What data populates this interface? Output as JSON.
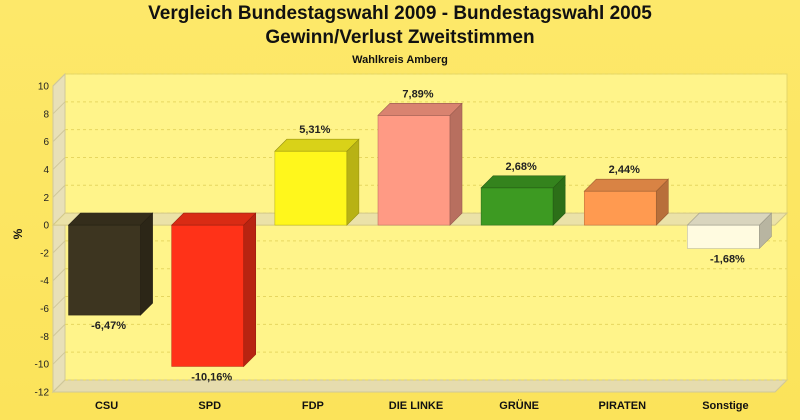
{
  "chart_data": {
    "type": "bar",
    "title": "Vergleich Bundestagswahl 2009 - Bundestagswahl 2005",
    "subtitle": "Gewinn/Verlust Zweitstimmen",
    "caption": "Wahlkreis Amberg",
    "ylabel": "%",
    "xlabel": "",
    "ylim": [
      -12,
      10
    ],
    "yticks": [
      10,
      8,
      6,
      4,
      2,
      0,
      -2,
      -4,
      -6,
      -8,
      -10,
      -12
    ],
    "grid": true,
    "categories": [
      "CSU",
      "SPD",
      "FDP",
      "DIE LINKE",
      "GRÜNE",
      "PIRATEN",
      "Sonstige"
    ],
    "values": [
      -6.47,
      -10.16,
      5.31,
      7.89,
      2.68,
      2.44,
      -1.68
    ],
    "value_labels": [
      "-6,47%",
      "-10,16%",
      "5,31%",
      "7,89%",
      "2,68%",
      "2,44%",
      "-1,68%"
    ],
    "colors": [
      "#3d3520",
      "#ff3218",
      "#fff71c",
      "#ff9a84",
      "#3d9a22",
      "#ff9a50",
      "#fffbe0"
    ]
  }
}
